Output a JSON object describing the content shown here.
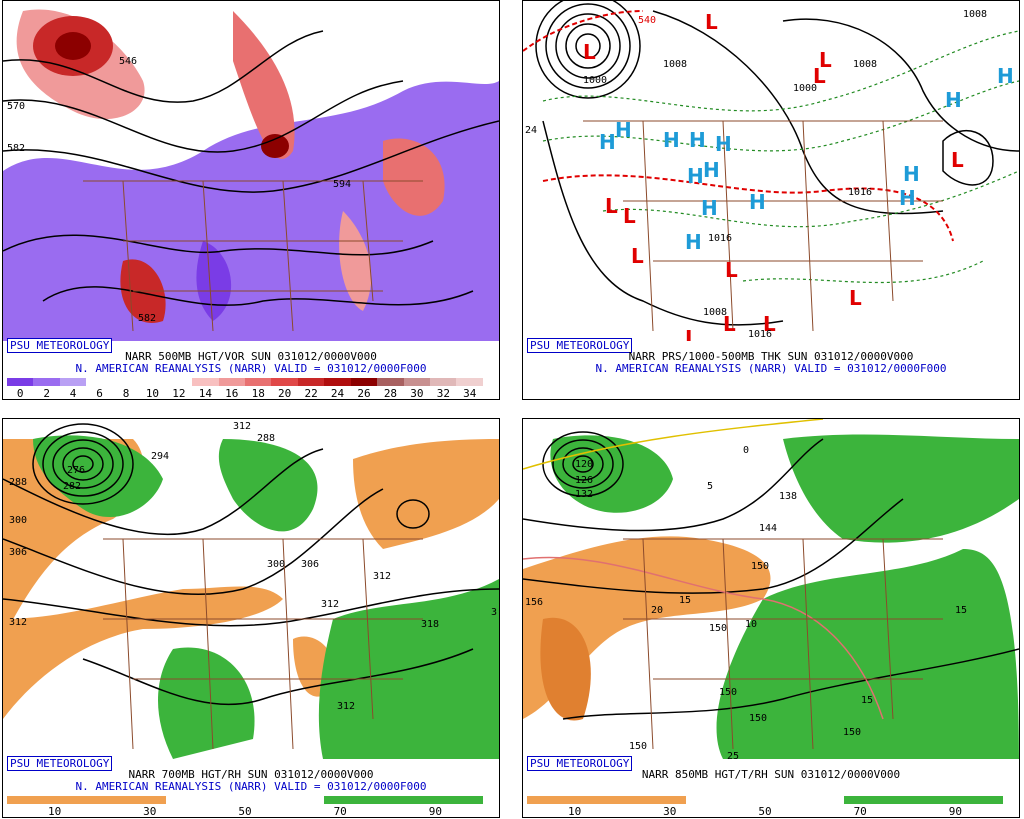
{
  "branding": "PSU METEOROLOGY",
  "panels": [
    {
      "id": "vor500",
      "title_line": "NARR 500MB HGT/VOR SUN 031012/0000V000",
      "subtitle_line": "N. AMERICAN REANALYSIS (NARR) VALID = 031012/0000F000",
      "colorbar": [
        "#7a3ce6",
        "#9a6cf0",
        "#b9a0f4",
        "#ffffff",
        "#ffffff",
        "#ffffff",
        "#ffffff",
        "#f8c0c0",
        "#f09a9a",
        "#e87070",
        "#e04848",
        "#c82828",
        "#b00e0e",
        "#8c0000",
        "#a86060",
        "#c89090",
        "#e0b8b8",
        "#f0d0d0"
      ],
      "ticks": [
        "0",
        "2",
        "4",
        "6",
        "8",
        "10",
        "12",
        "14",
        "16",
        "18",
        "20",
        "22",
        "24",
        "26",
        "28",
        "30",
        "32",
        "34"
      ],
      "contour_labels": [
        "570",
        "582",
        "546",
        "594",
        "582"
      ]
    },
    {
      "id": "prs1000",
      "title_line": "NARR PRS/1000-500MB THK SUN 031012/0000V000",
      "subtitle_line": "N. AMERICAN REANALYSIS (NARR) VALID = 031012/0000F000",
      "contour_labels": [
        "540",
        "1008",
        "1000",
        "1008",
        "1016",
        "1016",
        "1008",
        "1008",
        "1000",
        "1016",
        "1008",
        "24"
      ],
      "highs": "H",
      "lows": "L",
      "high_color": "#1e9bd7",
      "low_color": "#e00000"
    },
    {
      "id": "rh700",
      "title_line": "NARR 700MB HGT/RH SUN 031012/0000V000",
      "subtitle_line": "N. AMERICAN REANALYSIS (NARR) VALID = 031012/0000F000",
      "colorbar": [
        "#f0a050",
        "#f0a050",
        "#f0a050",
        "#f0a050",
        "#ffffff",
        "#ffffff",
        "#ffffff",
        "#ffffff",
        "#3cb43c",
        "#3cb43c",
        "#3cb43c",
        "#3cb43c"
      ],
      "ticks": [
        "10",
        "30",
        "50",
        "70",
        "90"
      ],
      "contour_labels": [
        "288",
        "294",
        "276",
        "282",
        "288",
        "300",
        "306",
        "312",
        "312",
        "318",
        "300",
        "306",
        "312",
        "312",
        "312",
        "3"
      ]
    },
    {
      "id": "t850",
      "title_line": "NARR 850MB HGT/T/RH SUN 031012/0000V000",
      "subtitle_line": "",
      "colorbar": [
        "#f0a050",
        "#f0a050",
        "#f0a050",
        "#f0a050",
        "#ffffff",
        "#ffffff",
        "#ffffff",
        "#ffffff",
        "#3cb43c",
        "#3cb43c",
        "#3cb43c",
        "#3cb43c"
      ],
      "ticks": [
        "10",
        "30",
        "50",
        "70",
        "90"
      ],
      "contour_labels": [
        "120",
        "126",
        "132",
        "138",
        "144",
        "150",
        "156",
        "150",
        "150",
        "150",
        "150",
        "150",
        "15",
        "15",
        "25",
        "5",
        "0",
        "10",
        "20",
        "15"
      ]
    }
  ]
}
